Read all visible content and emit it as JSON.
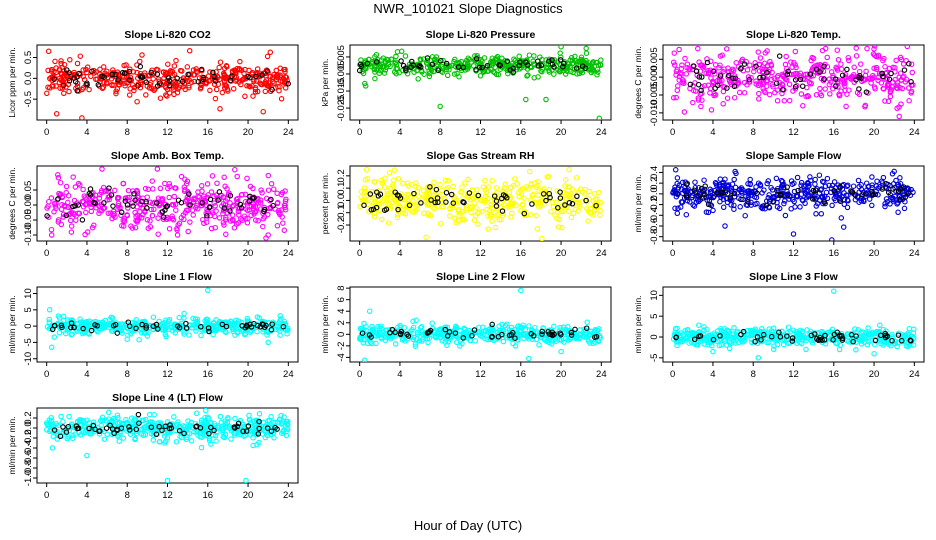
{
  "figure": {
    "title": "NWR_101021  Slope Diagnostics",
    "xlabel": "Hour of Day (UTC)"
  },
  "chart_data": [
    {
      "type": "scatter",
      "title": "Slope Li-820 CO2",
      "ylabel": "Licor ppm per min.",
      "xlim": [
        0,
        24
      ],
      "ylim": [
        -1.0,
        0.8
      ],
      "xticks": [
        0,
        4,
        8,
        12,
        16,
        20,
        24
      ],
      "yticks": [
        -0.5,
        0.0,
        0.5
      ],
      "ytick_labels": [
        "-0.5",
        "0.0",
        "0.5"
      ],
      "spread": 0.2,
      "series": [
        {
          "color": "#ff0000",
          "n": 420,
          "center": 0.0
        },
        {
          "color": "#000000",
          "n": 55,
          "center": 0.0
        }
      ],
      "outliers": [
        [
          0.2,
          0.65
        ],
        [
          1.0,
          -0.85
        ],
        [
          3.5,
          -0.95
        ],
        [
          14.2,
          0.66
        ],
        [
          21.5,
          -0.8
        ]
      ]
    },
    {
      "type": "scatter",
      "title": "Slope Li-820 Pressure",
      "ylabel": "kPa per min.",
      "xlim": [
        0,
        24
      ],
      "ylim": [
        -0.032,
        0.012
      ],
      "xticks": [
        0,
        4,
        8,
        12,
        16,
        20,
        24
      ],
      "yticks": [
        -0.025,
        -0.015,
        -0.005,
        0.005
      ],
      "ytick_labels": [
        "-0.025",
        "-0.015",
        "-0.005",
        "0.005"
      ],
      "spread": 0.003,
      "series": [
        {
          "color": "#00c000",
          "n": 380,
          "center": 0.0
        },
        {
          "color": "#000000",
          "n": 50,
          "center": 0.0
        }
      ],
      "outliers": [
        [
          0.6,
          -0.012
        ],
        [
          8.0,
          -0.024
        ],
        [
          16.5,
          -0.02
        ],
        [
          18.5,
          -0.02
        ],
        [
          23.8,
          -0.031
        ],
        [
          20.0,
          0.011
        ],
        [
          22.5,
          0.01
        ]
      ]
    },
    {
      "type": "scatter",
      "title": "Slope Li-820 Temp.",
      "ylabel": "degrees C per min.",
      "xlim": [
        0,
        24
      ],
      "ylim": [
        -0.012,
        0.009
      ],
      "xticks": [
        0,
        4,
        8,
        12,
        16,
        20,
        24
      ],
      "yticks": [
        -0.01,
        -0.005,
        0.0,
        0.005
      ],
      "ytick_labels": [
        "-0.010",
        "-0.005",
        "0.000",
        "0.005"
      ],
      "spread": 0.0035,
      "series": [
        {
          "color": "#ff00ff",
          "n": 420,
          "center": 0.0
        },
        {
          "color": "#000000",
          "n": 55,
          "center": 0.0
        }
      ],
      "outliers": [
        [
          2.5,
          0.008
        ],
        [
          8.5,
          0.007
        ],
        [
          15.2,
          0.008
        ],
        [
          19.3,
          0.008
        ],
        [
          22.5,
          -0.011
        ]
      ]
    },
    {
      "type": "scatter",
      "title": "Slope Amb. Box Temp.",
      "ylabel": "degrees C per min.",
      "xlim": [
        0,
        24
      ],
      "ylim": [
        -0.12,
        0.13
      ],
      "xticks": [
        0,
        4,
        8,
        12,
        16,
        20,
        24
      ],
      "yticks": [
        -0.1,
        -0.05,
        0.0,
        0.05
      ],
      "ytick_labels": [
        "-0.10",
        "-0.05",
        "0.00",
        "0.05"
      ],
      "spread": 0.04,
      "series": [
        {
          "color": "#ff00ff",
          "n": 430,
          "center": 0.0
        },
        {
          "color": "#000000",
          "n": 55,
          "center": 0.0
        }
      ],
      "outliers": [
        [
          0.5,
          -0.1
        ],
        [
          5.5,
          0.12
        ],
        [
          11.0,
          0.12
        ],
        [
          13.0,
          -0.1
        ],
        [
          22.0,
          -0.1
        ]
      ]
    },
    {
      "type": "scatter",
      "title": "Slope Gas Stream RH",
      "ylabel": "percent per min.",
      "xlim": [
        0,
        24
      ],
      "ylim": [
        -0.33,
        0.28
      ],
      "xticks": [
        0,
        4,
        8,
        12,
        16,
        20,
        24
      ],
      "yticks": [
        -0.2,
        -0.1,
        0.0,
        0.1,
        0.2
      ],
      "ytick_labels": [
        "-0.2",
        "-0.1",
        "0.0",
        "0.1",
        "0.2"
      ],
      "spread": 0.09,
      "series": [
        {
          "color": "#ffff00",
          "n": 430,
          "center": 0.0
        },
        {
          "color": "#000000",
          "n": 55,
          "center": 0.0
        }
      ],
      "outliers": [
        [
          0.7,
          0.25
        ],
        [
          6.6,
          -0.3
        ],
        [
          13.5,
          -0.22
        ],
        [
          20.8,
          0.25
        ]
      ]
    },
    {
      "type": "scatter",
      "title": "Slope Sample Flow",
      "ylabel": "ml/min per min.",
      "xlim": [
        0,
        24
      ],
      "ylim": [
        -0.88,
        0.52
      ],
      "xticks": [
        0,
        4,
        8,
        12,
        16,
        20,
        24
      ],
      "yticks": [
        -0.8,
        -0.6,
        -0.4,
        -0.2,
        0.0,
        0.2,
        0.4
      ],
      "ytick_labels": [
        "-0.8",
        "-0.6",
        "-0.4",
        "-0.2",
        "0.0",
        "0.2",
        "0.4"
      ],
      "spread": 0.15,
      "series": [
        {
          "color": "#0000dd",
          "n": 430,
          "center": 0.0
        },
        {
          "color": "#000000",
          "n": 55,
          "center": 0.0
        }
      ],
      "outliers": [
        [
          0.3,
          0.45
        ],
        [
          5.2,
          -0.6
        ],
        [
          12.0,
          -0.75
        ],
        [
          15.8,
          -0.86
        ],
        [
          22.0,
          0.42
        ]
      ]
    },
    {
      "type": "scatter",
      "title": "Slope Line 1 Flow",
      "ylabel": "ml/min per min.",
      "xlim": [
        0,
        24
      ],
      "ylim": [
        -11,
        12
      ],
      "xticks": [
        0,
        4,
        8,
        12,
        16,
        20,
        24
      ],
      "yticks": [
        -10,
        -5,
        0,
        5,
        10
      ],
      "ytick_labels": [
        "-10",
        "-5",
        "0",
        "5",
        "10"
      ],
      "spread": 1.3,
      "series": [
        {
          "color": "#00ffff",
          "n": 420,
          "center": 0.0
        },
        {
          "color": "#000000",
          "n": 50,
          "center": 0.0
        }
      ],
      "outliers": [
        [
          0.3,
          5.0
        ],
        [
          0.5,
          -6.5
        ],
        [
          8.0,
          -4.0
        ],
        [
          16.0,
          11.0
        ],
        [
          22.0,
          -5.0
        ]
      ]
    },
    {
      "type": "scatter",
      "title": "Slope Line 2 Flow",
      "ylabel": "ml/min per min.",
      "xlim": [
        0,
        24
      ],
      "ylim": [
        -4.8,
        8.2
      ],
      "xticks": [
        0,
        4,
        8,
        12,
        16,
        20,
        24
      ],
      "yticks": [
        -4,
        -2,
        0,
        2,
        4,
        6,
        8
      ],
      "ytick_labels": [
        "-4",
        "-2",
        "0",
        "2",
        "4",
        "6",
        "8"
      ],
      "spread": 0.8,
      "series": [
        {
          "color": "#00ffff",
          "n": 420,
          "center": 0.0
        },
        {
          "color": "#000000",
          "n": 50,
          "center": 0.0
        }
      ],
      "outliers": [
        [
          0.5,
          -4.5
        ],
        [
          1.0,
          4.0
        ],
        [
          16.0,
          7.6
        ],
        [
          16.8,
          -4.2
        ],
        [
          20.0,
          -3.0
        ]
      ]
    },
    {
      "type": "scatter",
      "title": "Slope Line 3 Flow",
      "ylabel": "ml/min per min.",
      "xlim": [
        0,
        24
      ],
      "ylim": [
        -6,
        12
      ],
      "xticks": [
        0,
        4,
        8,
        12,
        16,
        20,
        24
      ],
      "yticks": [
        -5,
        0,
        5,
        10
      ],
      "ytick_labels": [
        "-5",
        "0",
        "5",
        "10"
      ],
      "spread": 1.0,
      "series": [
        {
          "color": "#00ffff",
          "n": 420,
          "center": 0.0
        },
        {
          "color": "#000000",
          "n": 50,
          "center": 0.0
        }
      ],
      "outliers": [
        [
          4.0,
          -3.5
        ],
        [
          8.5,
          -5.0
        ],
        [
          16.0,
          11.0
        ],
        [
          20.0,
          -4.0
        ],
        [
          23.5,
          2.0
        ]
      ]
    },
    {
      "type": "scatter",
      "title": "Slope Line 4 (LT) Flow",
      "ylabel": "ml/min per min.",
      "xlim": [
        0,
        24
      ],
      "ylim": [
        -1.1,
        0.4
      ],
      "xticks": [
        0,
        4,
        8,
        12,
        16,
        20,
        24
      ],
      "yticks": [
        -1.0,
        -0.8,
        -0.6,
        -0.4,
        -0.2,
        0.0,
        0.2
      ],
      "ytick_labels": [
        "-1.0",
        "-0.8",
        "-0.6",
        "-0.4",
        "-0.2",
        "0.0",
        "0.2"
      ],
      "spread": 0.12,
      "series": [
        {
          "color": "#00ffff",
          "n": 440,
          "center": 0.0
        },
        {
          "color": "#000000",
          "n": 55,
          "center": 0.0
        }
      ],
      "outliers": [
        [
          4.0,
          -0.55
        ],
        [
          12.0,
          -1.05
        ],
        [
          15.8,
          0.35
        ],
        [
          19.8,
          -1.05
        ],
        [
          20.5,
          -0.35
        ]
      ]
    }
  ]
}
